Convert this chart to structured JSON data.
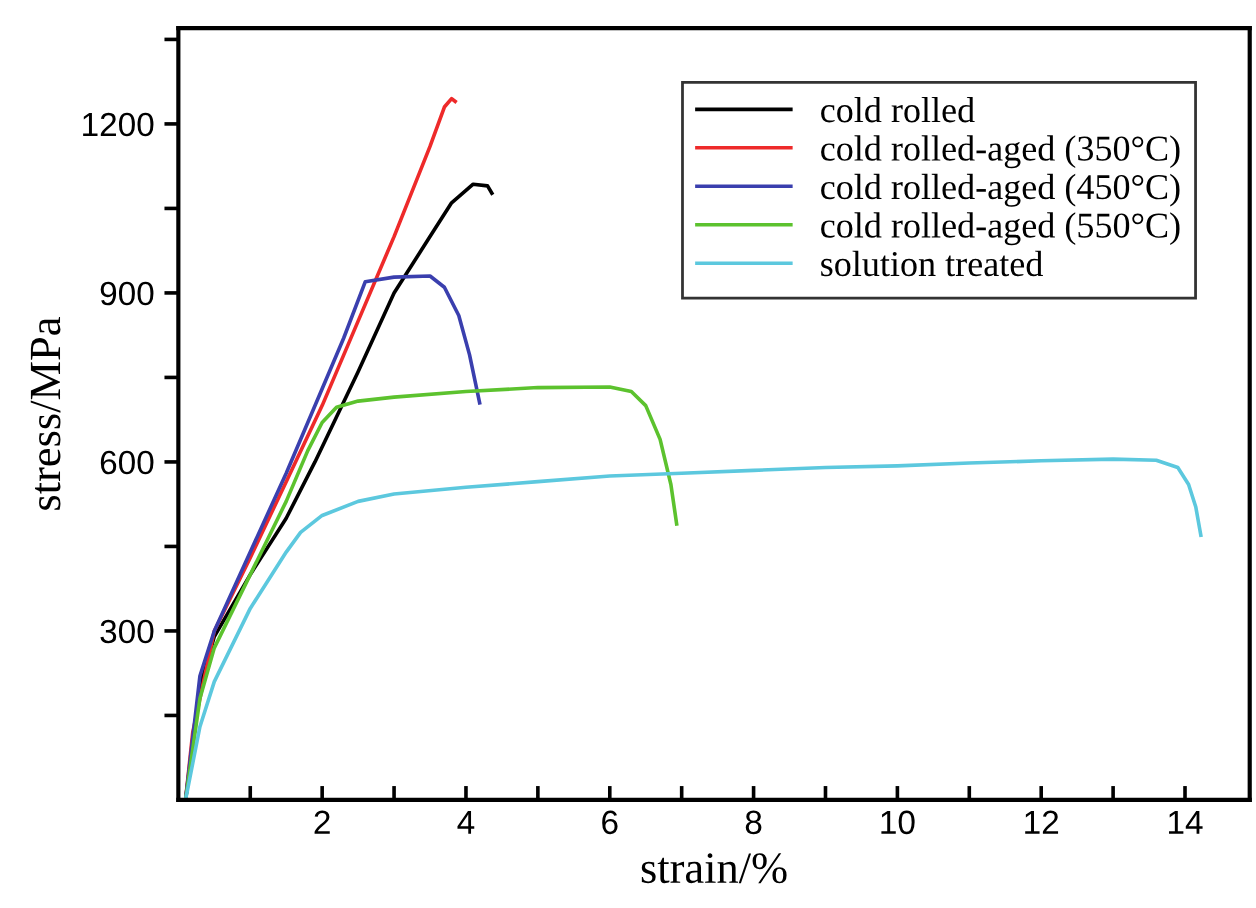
{
  "chart_data": {
    "type": "line",
    "xlabel": "strain/%",
    "ylabel": "stress/MPa",
    "xlim": [
      0,
      14.9
    ],
    "ylim": [
      0,
      1370
    ],
    "xticks": [
      {
        "value": 1,
        "label": null
      },
      2,
      {
        "value": 3,
        "label": null
      },
      4,
      {
        "value": 5,
        "label": null
      },
      6,
      {
        "value": 7,
        "label": null
      },
      8,
      {
        "value": 9,
        "label": null
      },
      10,
      {
        "value": 11,
        "label": null
      },
      12,
      {
        "value": 13,
        "label": null
      },
      14
    ],
    "yticks": [
      {
        "value": 150,
        "label": null
      },
      300,
      {
        "value": 450,
        "label": null
      },
      600,
      {
        "value": 750,
        "label": null
      },
      900,
      {
        "value": 1050,
        "label": null
      },
      1200,
      {
        "value": 1350,
        "label": null
      }
    ],
    "grid": false,
    "legend": "top right",
    "marker": "none",
    "line_style": "solid",
    "series": [
      {
        "name": "cold rolled",
        "color": "#000000",
        "x": [
          0.1,
          0.3,
          0.5,
          1,
          1.5,
          1.9,
          2.5,
          3,
          3.5,
          3.8,
          4.1,
          4.3,
          4.36
        ],
        "values": [
          0,
          200,
          290,
          400,
          500,
          600,
          760,
          900,
          1000,
          1060,
          1093,
          1090,
          1077
        ]
      },
      {
        "name": "cold rolled-aged (350°C)",
        "color": "#ee2a2a",
        "x": [
          0.1,
          0.2,
          0.5,
          1,
          1.5,
          2,
          2.5,
          3,
          3.5,
          3.7,
          3.8,
          3.85
        ],
        "values": [
          0,
          120,
          300,
          430,
          565,
          700,
          850,
          1000,
          1160,
          1230,
          1245,
          1240
        ]
      },
      {
        "name": "cold rolled-aged (450°C)",
        "color": "#3a3fae",
        "x": [
          0.1,
          0.3,
          0.5,
          1,
          1.5,
          2,
          2.3,
          2.6,
          3,
          3.5,
          3.7,
          3.9,
          4.05,
          4.19
        ],
        "values": [
          0,
          220,
          300,
          440,
          580,
          730,
          820,
          920,
          928,
          930,
          910,
          860,
          790,
          705
        ]
      },
      {
        "name": "cold rolled-aged (550°C)",
        "color": "#5cc22e",
        "x": [
          0.1,
          0.3,
          0.5,
          1,
          1.5,
          1.8,
          2,
          2.2,
          2.5,
          3,
          4,
          5,
          6,
          6.3,
          6.5,
          6.7,
          6.85,
          6.93
        ],
        "values": [
          0,
          180,
          270,
          400,
          530,
          620,
          670,
          697,
          708,
          715,
          725,
          732,
          733,
          725,
          700,
          640,
          560,
          490
        ]
      },
      {
        "name": "solution treated",
        "color": "#5cc8de",
        "x": [
          0.1,
          0.3,
          0.5,
          1,
          1.5,
          1.7,
          2,
          2.5,
          3,
          4,
          5,
          6,
          7,
          8,
          9,
          10,
          11,
          12,
          13,
          13.6,
          13.9,
          14.05,
          14.15,
          14.22
        ],
        "values": [
          0,
          130,
          210,
          340,
          440,
          475,
          505,
          530,
          543,
          555,
          565,
          575,
          580,
          585,
          590,
          593,
          598,
          602,
          605,
          603,
          590,
          560,
          520,
          470
        ]
      }
    ]
  }
}
